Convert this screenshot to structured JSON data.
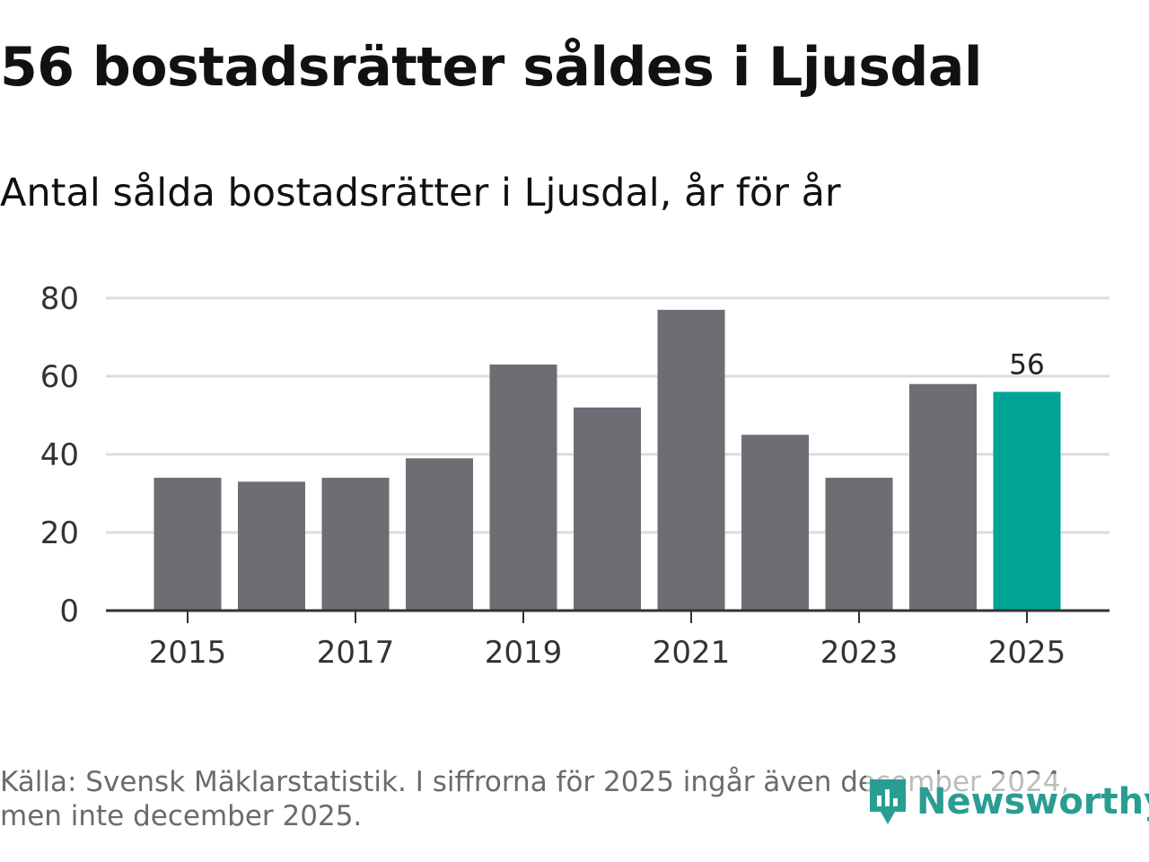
{
  "title": "56 bostadsrätter såldes i Ljusdal",
  "subtitle": "Antal sålda bostadsrätter i Ljusdal, år för år",
  "colors": {
    "bar": "#6e6d74",
    "highlight": "#00a496",
    "grid": "#dcdcdc",
    "axis": "#333333"
  },
  "chart_data": {
    "type": "bar",
    "categories": [
      "2015",
      "2016",
      "2017",
      "2018",
      "2019",
      "2020",
      "2021",
      "2022",
      "2023",
      "2024",
      "2025"
    ],
    "values": [
      34,
      33,
      34,
      39,
      63,
      52,
      77,
      45,
      34,
      58,
      56
    ],
    "highlight_index": 10,
    "y_ticks": [
      "0",
      "20",
      "40",
      "60",
      "80"
    ],
    "x_tick_labels": [
      "2015",
      "2017",
      "2019",
      "2021",
      "2023",
      "2025"
    ],
    "ylim": [
      0,
      80
    ],
    "grid": true,
    "data_labels": [
      {
        "index": 10,
        "text": "56"
      }
    ],
    "xlabel": "",
    "ylabel": ""
  },
  "footer": {
    "line1": "Källa: Svensk Mäklarstatistik. I siffrorna för 2025 ingår även december 2024,",
    "line2": "men inte december 2025."
  },
  "logo": {
    "text": "Newsworthy",
    "icon": "newsworthy-bar-icon"
  }
}
